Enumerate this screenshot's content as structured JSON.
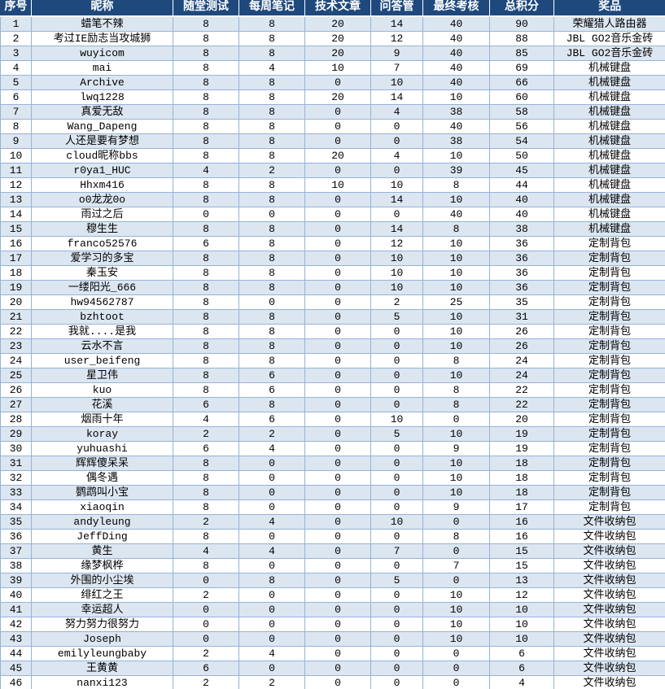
{
  "colors": {
    "header_bg": "#1F497D",
    "header_text": "#FFFFFF",
    "band_bg": "#DCE6F1",
    "grid_border": "#95B3D7"
  },
  "table": {
    "columns": [
      {
        "key": "rank",
        "label": "序号"
      },
      {
        "key": "nickname",
        "label": "昵称"
      },
      {
        "key": "quiz",
        "label": "随堂测试"
      },
      {
        "key": "weekly-notes",
        "label": "每周笔记"
      },
      {
        "key": "tech-article",
        "label": "技术文章"
      },
      {
        "key": "qa",
        "label": "问答管"
      },
      {
        "key": "final-exam",
        "label": "最终考核"
      },
      {
        "key": "total-score",
        "label": "总积分"
      },
      {
        "key": "prize",
        "label": "奖品"
      }
    ],
    "rows": [
      [
        1,
        "蜡笔不辣",
        8,
        8,
        20,
        14,
        40,
        90,
        "荣耀猎人路由器"
      ],
      [
        2,
        "考过IE励志当攻城狮",
        8,
        8,
        20,
        12,
        40,
        88,
        "JBL GO2音乐金砖"
      ],
      [
        3,
        "wuyicom",
        8,
        8,
        20,
        9,
        40,
        85,
        "JBL GO2音乐金砖"
      ],
      [
        4,
        "mai",
        8,
        4,
        10,
        7,
        40,
        69,
        "机械键盘"
      ],
      [
        5,
        "Archive",
        8,
        8,
        0,
        10,
        40,
        66,
        "机械键盘"
      ],
      [
        6,
        "lwq1228",
        8,
        8,
        20,
        14,
        10,
        60,
        "机械键盘"
      ],
      [
        7,
        "真爱无敌",
        8,
        8,
        0,
        4,
        38,
        58,
        "机械键盘"
      ],
      [
        8,
        "Wang_Dapeng",
        8,
        8,
        0,
        0,
        40,
        56,
        "机械键盘"
      ],
      [
        9,
        "人还是要有梦想",
        8,
        8,
        0,
        0,
        38,
        54,
        "机械键盘"
      ],
      [
        10,
        "cloud昵称bbs",
        8,
        8,
        20,
        4,
        10,
        50,
        "机械键盘"
      ],
      [
        11,
        "r0ya1_HUC",
        4,
        2,
        0,
        0,
        39,
        45,
        "机械键盘"
      ],
      [
        12,
        "Hhxm416",
        8,
        8,
        10,
        10,
        8,
        44,
        "机械键盘"
      ],
      [
        13,
        "o0龙龙0o",
        8,
        8,
        0,
        14,
        10,
        40,
        "机械键盘"
      ],
      [
        14,
        "雨过之后",
        0,
        0,
        0,
        0,
        40,
        40,
        "机械键盘"
      ],
      [
        15,
        "穆生生",
        8,
        8,
        0,
        14,
        8,
        38,
        "机械键盘"
      ],
      [
        16,
        "franco52576",
        6,
        8,
        0,
        12,
        10,
        36,
        "定制背包"
      ],
      [
        17,
        "爱学习的多宝",
        8,
        8,
        0,
        10,
        10,
        36,
        "定制背包"
      ],
      [
        18,
        "秦玉安",
        8,
        8,
        0,
        10,
        10,
        36,
        "定制背包"
      ],
      [
        19,
        "一缕阳光_666",
        8,
        8,
        0,
        10,
        10,
        36,
        "定制背包"
      ],
      [
        20,
        "hw94562787",
        8,
        0,
        0,
        2,
        25,
        35,
        "定制背包"
      ],
      [
        21,
        "bzhtoot",
        8,
        8,
        0,
        5,
        10,
        31,
        "定制背包"
      ],
      [
        22,
        "我就....是我",
        8,
        8,
        0,
        0,
        10,
        26,
        "定制背包"
      ],
      [
        23,
        "云水不言",
        8,
        8,
        0,
        0,
        10,
        26,
        "定制背包"
      ],
      [
        24,
        "user_beifeng",
        8,
        8,
        0,
        0,
        8,
        24,
        "定制背包"
      ],
      [
        25,
        "星卫伟",
        8,
        6,
        0,
        0,
        10,
        24,
        "定制背包"
      ],
      [
        26,
        "kuo",
        8,
        6,
        0,
        0,
        8,
        22,
        "定制背包"
      ],
      [
        27,
        "花溪",
        6,
        8,
        0,
        0,
        8,
        22,
        "定制背包"
      ],
      [
        28,
        "烟雨十年",
        4,
        6,
        0,
        10,
        0,
        20,
        "定制背包"
      ],
      [
        29,
        "koray",
        2,
        2,
        0,
        5,
        10,
        19,
        "定制背包"
      ],
      [
        30,
        "yuhuashi",
        6,
        4,
        0,
        0,
        9,
        19,
        "定制背包"
      ],
      [
        31,
        "辉辉傻呆呆",
        8,
        0,
        0,
        0,
        10,
        18,
        "定制背包"
      ],
      [
        32,
        "偶冬遇",
        8,
        0,
        0,
        0,
        10,
        18,
        "定制背包"
      ],
      [
        33,
        "鹦鹉叫小宝",
        8,
        0,
        0,
        0,
        10,
        18,
        "定制背包"
      ],
      [
        34,
        "xiaoqin",
        8,
        0,
        0,
        0,
        9,
        17,
        "定制背包"
      ],
      [
        35,
        "andyleung",
        2,
        4,
        0,
        10,
        0,
        16,
        "文件收纳包"
      ],
      [
        36,
        "JeffDing",
        8,
        0,
        0,
        0,
        8,
        16,
        "文件收纳包"
      ],
      [
        37,
        "黄生",
        4,
        4,
        0,
        7,
        0,
        15,
        "文件收纳包"
      ],
      [
        38,
        "缘梦枫桦",
        8,
        0,
        0,
        0,
        7,
        15,
        "文件收纳包"
      ],
      [
        39,
        "外围的小尘埃",
        0,
        8,
        0,
        5,
        0,
        13,
        "文件收纳包"
      ],
      [
        40,
        "绯红之王",
        2,
        0,
        0,
        0,
        10,
        12,
        "文件收纳包"
      ],
      [
        41,
        "幸运超人",
        0,
        0,
        0,
        0,
        10,
        10,
        "文件收纳包"
      ],
      [
        42,
        "努力努力很努力",
        0,
        0,
        0,
        0,
        10,
        10,
        "文件收纳包"
      ],
      [
        43,
        "Joseph",
        0,
        0,
        0,
        0,
        10,
        10,
        "文件收纳包"
      ],
      [
        44,
        "emilyleungbaby",
        2,
        4,
        0,
        0,
        0,
        6,
        "文件收纳包"
      ],
      [
        45,
        "王黄黄",
        6,
        0,
        0,
        0,
        0,
        6,
        "文件收纳包"
      ],
      [
        46,
        "nanxi123",
        2,
        2,
        0,
        0,
        0,
        4,
        "文件收纳包"
      ]
    ]
  }
}
